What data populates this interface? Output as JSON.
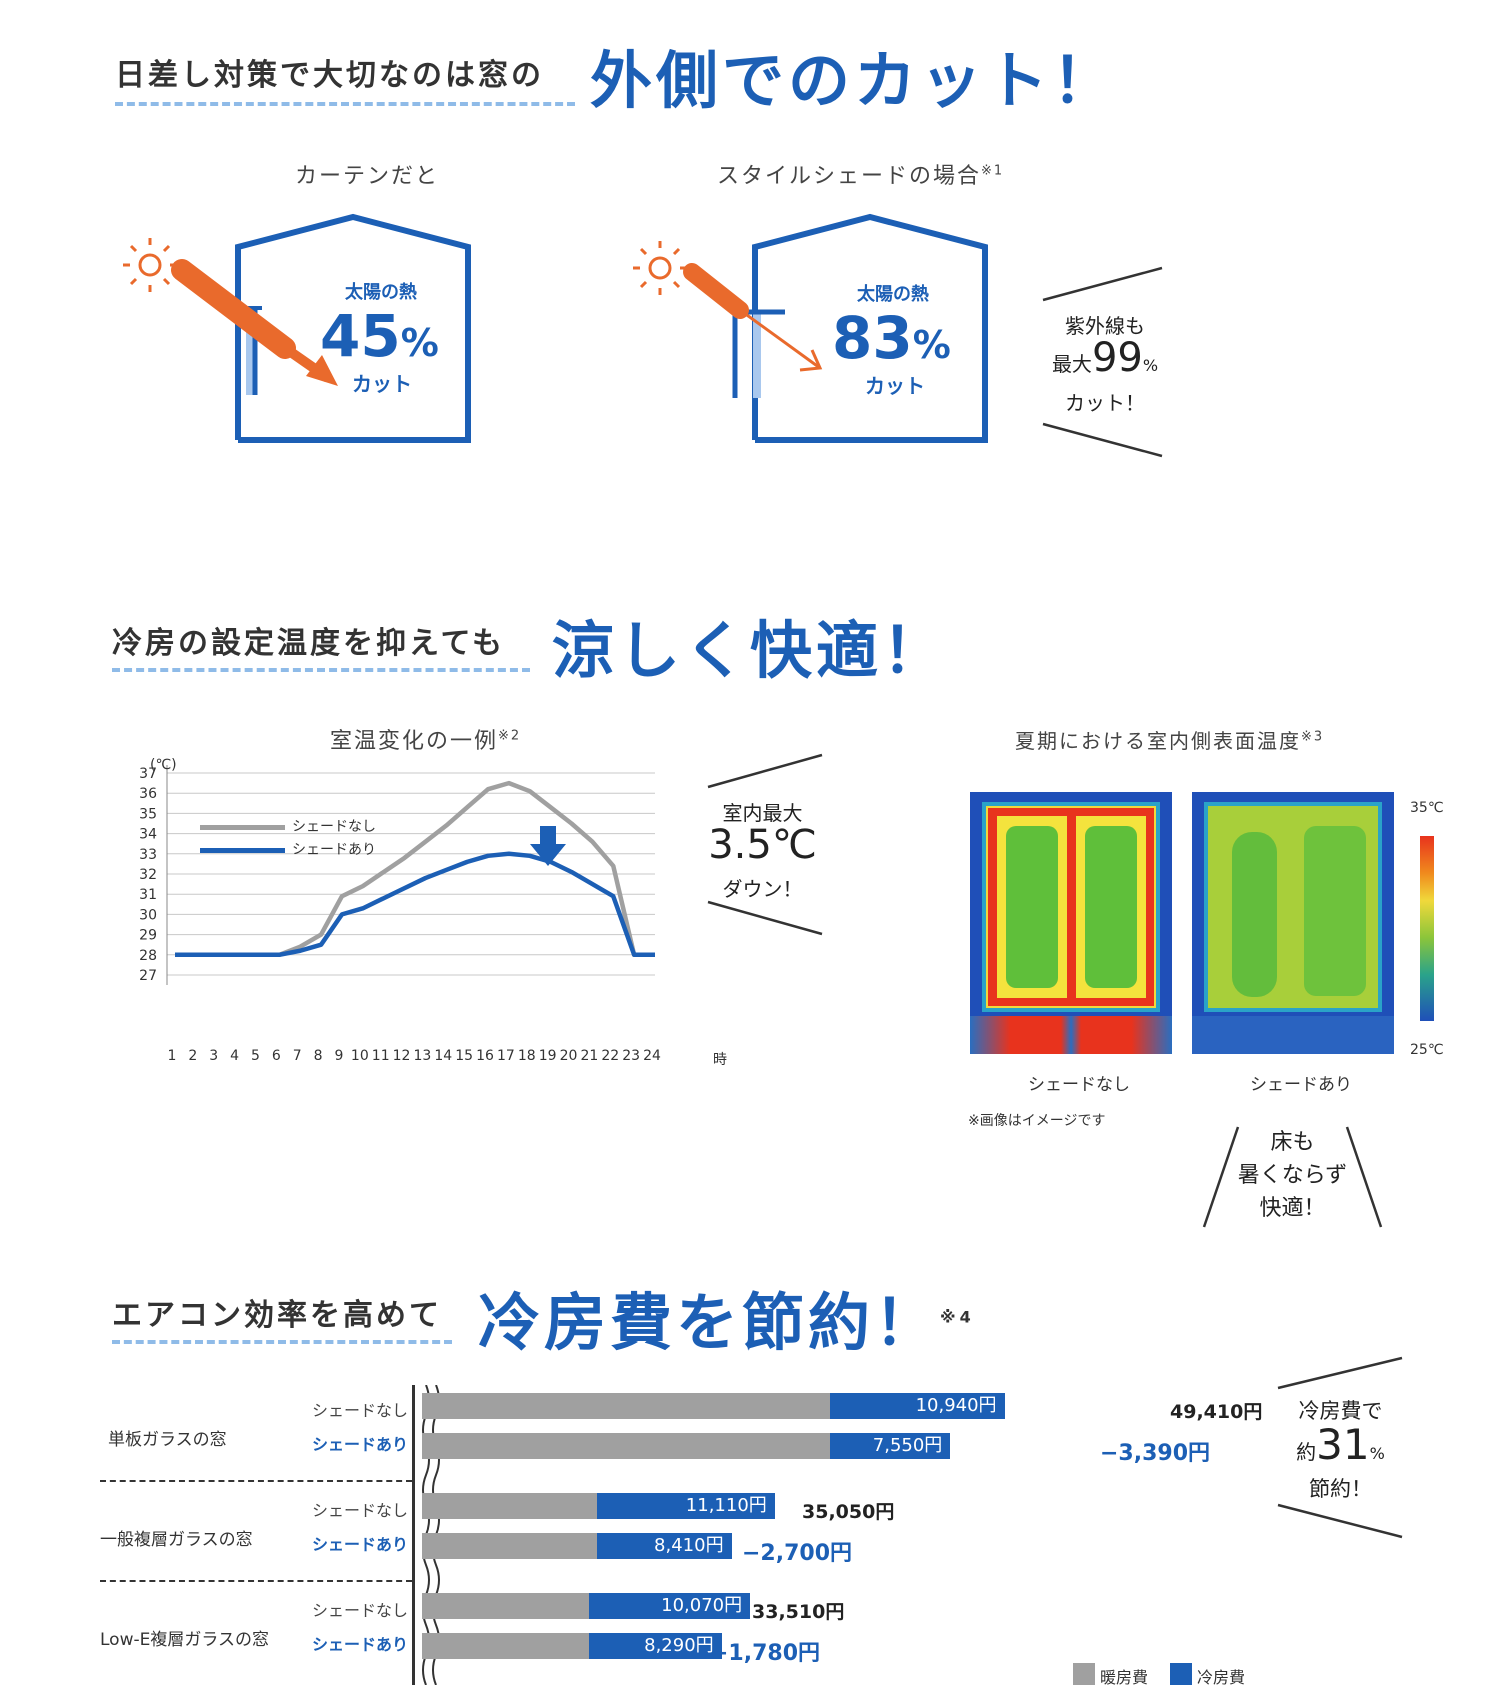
{
  "section1": {
    "heading_small": "日差し対策で大切なのは窓の",
    "heading_big": "外側でのカット！",
    "curtain": {
      "label": "カーテンだと",
      "heat_label": "太陽の熱",
      "percent": "45",
      "percent_sign": "%",
      "cut": "カット"
    },
    "shade": {
      "label": "スタイルシェードの場合",
      "note": "※1",
      "heat_label": "太陽の熱",
      "percent": "83",
      "percent_sign": "%",
      "cut": "カット"
    },
    "uv_callout": {
      "line1": "紫外線も",
      "prefix": "最大",
      "num": "99",
      "unit": "%",
      "line3": "カット！"
    }
  },
  "section2": {
    "heading_small": "冷房の設定温度を抑えても",
    "heading_big": "涼しく快適！",
    "chart_title": "室温変化の一例",
    "chart_note": "※2",
    "yunit": "(℃)",
    "hour_unit": "時",
    "legend_no": "シェードなし",
    "legend_yes": "シェードあり",
    "callout": {
      "line1": "室内最大",
      "value": "3.5℃",
      "line3": "ダウン！"
    },
    "thermal_title": "夏期における室内側表面温度",
    "thermal_note": "※3",
    "thermal_no": "シェードなし",
    "thermal_yes": "シェードあり",
    "scale_top": "35℃",
    "scale_bottom": "25℃",
    "image_note": "※画像はイメージです",
    "floor_callout": {
      "line1": "床も",
      "line2": "暑くならず",
      "line3": "快適！"
    }
  },
  "chart_data": [
    {
      "type": "line",
      "title": "室温変化の一例",
      "xlabel": "時",
      "ylabel": "(℃)",
      "x": [
        1,
        2,
        3,
        4,
        5,
        6,
        7,
        8,
        9,
        10,
        11,
        12,
        13,
        14,
        15,
        16,
        17,
        18,
        19,
        20,
        21,
        22,
        23,
        24
      ],
      "ylim": [
        27,
        37
      ],
      "series": [
        {
          "name": "シェードなし",
          "color": "#a0a0a0",
          "values": [
            28,
            28,
            28,
            28,
            28,
            28,
            28.4,
            29,
            30.9,
            31.4,
            32.1,
            32.8,
            33.6,
            34.4,
            35.3,
            36.2,
            36.5,
            36.1,
            35.3,
            34.5,
            33.6,
            32.4,
            28,
            28
          ]
        },
        {
          "name": "シェードあり",
          "color": "#1c5fb5",
          "values": [
            28,
            28,
            28,
            28,
            28,
            28,
            28.2,
            28.5,
            30,
            30.3,
            30.8,
            31.3,
            31.8,
            32.2,
            32.6,
            32.9,
            33.0,
            32.9,
            32.6,
            32.1,
            31.5,
            30.9,
            28,
            28
          ]
        }
      ]
    },
    {
      "type": "bar",
      "title": "冷房費を節約！",
      "categories": [
        "単板ガラスの窓 シェードなし",
        "単板ガラスの窓 シェードあり",
        "一般複層ガラスの窓 シェードなし",
        "一般複層ガラスの窓 シェードあり",
        "Low-E複層ガラスの窓 シェードなし",
        "Low-E複層ガラスの窓 シェードあり"
      ],
      "series": [
        {
          "name": "暖房費",
          "color": "#a0a0a0",
          "values": [
            38470,
            38470,
            23940,
            23940,
            23440,
            23440
          ]
        },
        {
          "name": "冷房費",
          "color": "#1c5fb5",
          "values": [
            10940,
            7550,
            11110,
            8410,
            10070,
            8290
          ]
        }
      ]
    }
  ],
  "section3": {
    "heading_small": "エアコン効率を高めて",
    "heading_big": "冷房費を節約！",
    "note": "※4",
    "groups": [
      {
        "label": "単板ガラスの窓",
        "no_label": "シェードなし",
        "yes_label": "シェードあり",
        "cool_no": "10,940円",
        "cool_yes": "7,550円",
        "total": "49,410円",
        "diff": "−3,390円"
      },
      {
        "label": "一般複層ガラスの窓",
        "no_label": "シェードなし",
        "yes_label": "シェードあり",
        "cool_no": "11,110円",
        "cool_yes": "8,410円",
        "total": "35,050円",
        "diff": "−2,700円"
      },
      {
        "label": "Low-E複層ガラスの窓",
        "no_label": "シェードなし",
        "yes_label": "シェードあり",
        "cool_no": "10,070円",
        "cool_yes": "8,290円",
        "total": "33,510円",
        "diff": "−1,780円"
      }
    ],
    "callout": {
      "line1": "冷房費で",
      "prefix": "約",
      "num": "31",
      "unit": "%",
      "line3": "節約！"
    },
    "legend_heat": "暖房費",
    "legend_cool": "冷房費"
  }
}
